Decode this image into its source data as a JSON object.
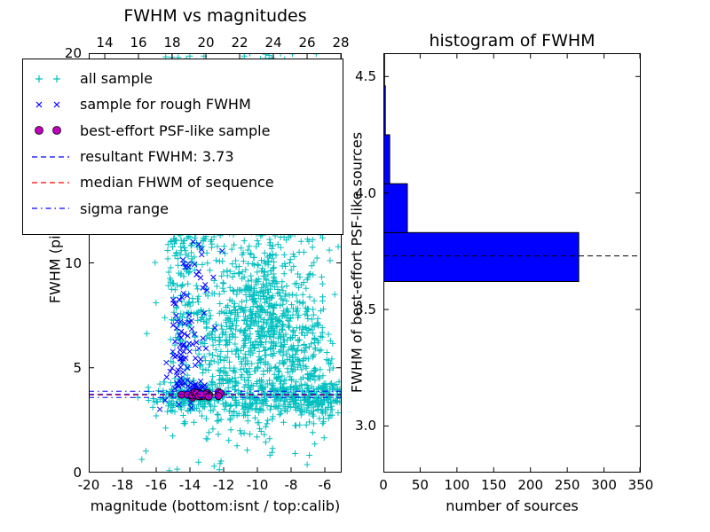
{
  "legend": {
    "entries": [
      {
        "label": "all sample",
        "type": "plus",
        "color": "#00bfbf"
      },
      {
        "label": "sample for rough FWHM",
        "type": "x",
        "color": "#0000ff"
      },
      {
        "label": "best-effort PSF-like sample",
        "type": "circle",
        "color": "#bf00bf",
        "edge": "#000000"
      },
      {
        "label": "resultant FWHM: 3.73",
        "type": "dashed",
        "color": "#0000ff"
      },
      {
        "label": "median FHWM of sequence",
        "type": "dashed",
        "color": "#ff0000"
      },
      {
        "label": "sigma range",
        "type": "dashdot",
        "color": "#0000ff"
      }
    ]
  },
  "chart_data": [
    {
      "type": "scatter",
      "title": "FWHM vs magnitudes",
      "xlabel": "magnitude (bottom:isnt / top:calib)",
      "ylabel": "FWHM (pix)",
      "xlim": [
        -20,
        -5
      ],
      "ylim": [
        0,
        20
      ],
      "x_ticks": [
        {
          "v": -20,
          "label": "-20"
        },
        {
          "v": -18,
          "label": "-18"
        },
        {
          "v": -16,
          "label": "-16"
        },
        {
          "v": -14,
          "label": "-14"
        },
        {
          "v": -12,
          "label": "-12"
        },
        {
          "v": -10,
          "label": "-10"
        },
        {
          "v": -8,
          "label": "-8"
        },
        {
          "v": -6,
          "label": "-6"
        }
      ],
      "y_ticks": [
        {
          "v": 0,
          "label": "0"
        },
        {
          "v": 5,
          "label": "5"
        },
        {
          "v": 10,
          "label": "10"
        },
        {
          "v": 15,
          "label": "15"
        },
        {
          "v": 20,
          "label": "20"
        }
      ],
      "top_axis": {
        "xlim": [
          13.05,
          28.05
        ],
        "ticks": [
          {
            "v": 14,
            "label": "14"
          },
          {
            "v": 16,
            "label": "16"
          },
          {
            "v": 18,
            "label": "18"
          },
          {
            "v": 20,
            "label": "20"
          },
          {
            "v": 22,
            "label": "22"
          },
          {
            "v": 24,
            "label": "24"
          },
          {
            "v": 26,
            "label": "26"
          },
          {
            "v": 28,
            "label": "28"
          }
        ]
      },
      "hlines": [
        {
          "name": "sigma range lower",
          "y": 3.58,
          "color": "#0000ff",
          "dash": "dashdot"
        },
        {
          "name": "sigma range upper",
          "y": 3.88,
          "color": "#0000ff",
          "dash": "dashdot"
        },
        {
          "name": "median FHWM of sequence",
          "y": 3.7,
          "color": "#ff0000",
          "dash": "dashed"
        },
        {
          "name": "resultant FWHM",
          "y": 3.73,
          "color": "#0000ff",
          "dash": "dashed"
        }
      ],
      "series": [
        {
          "id": "all-sample",
          "name": "all sample",
          "marker": "plus",
          "color": "#00bfbf",
          "clusters": [
            {
              "cx": -14.0,
              "cy": 3.55,
              "sx": 1.1,
              "sy": 0.35,
              "n": 200
            },
            {
              "cx": -9.0,
              "cy": 3.5,
              "sx": 2.0,
              "sy": 0.45,
              "n": 280
            },
            {
              "cx": -6.3,
              "cy": 3.7,
              "sx": 0.7,
              "sy": 0.6,
              "n": 70
            },
            {
              "cx": -5.6,
              "cy": 3.7,
              "sx": 0.5,
              "sy": 0.4,
              "n": 25
            },
            {
              "cx": -14.4,
              "cy": 13.0,
              "sx": 0.75,
              "sy": 5.0,
              "n": 420
            },
            {
              "cx": -9.5,
              "cy": 7.0,
              "sx": 1.5,
              "sy": 1.8,
              "n": 600
            },
            {
              "cx": -10.0,
              "cy": 12.0,
              "sx": 1.8,
              "sy": 3.0,
              "n": 300
            },
            {
              "cx": -9.0,
              "cy": 17.5,
              "sx": 1.6,
              "sy": 2.5,
              "n": 180
            },
            {
              "cx": -12.3,
              "cy": 6.0,
              "sx": 0.9,
              "sy": 1.5,
              "n": 120
            },
            {
              "cx": -7.2,
              "cy": 5.0,
              "sx": 0.9,
              "sy": 1.5,
              "n": 90
            },
            {
              "cx": -11.5,
              "cy": 1.8,
              "sx": 2.2,
              "sy": 1.0,
              "n": 50
            },
            {
              "cx": -6.5,
              "cy": 9.0,
              "sx": 0.8,
              "sy": 3.0,
              "n": 40
            }
          ]
        },
        {
          "id": "rough-fwhm-sample",
          "name": "sample for rough FWHM",
          "marker": "x",
          "color": "#0000ff",
          "clusters": [
            {
              "cx": -14.4,
              "cy": 5.0,
              "sx": 0.55,
              "sy": 0.9,
              "n": 55
            },
            {
              "cx": -14.2,
              "cy": 7.5,
              "sx": 0.6,
              "sy": 1.5,
              "n": 35
            },
            {
              "cx": -13.6,
              "cy": 10.0,
              "sx": 0.7,
              "sy": 1.3,
              "n": 15
            },
            {
              "cx": -13.9,
              "cy": 4.1,
              "sx": 0.5,
              "sy": 0.25,
              "n": 15
            }
          ]
        },
        {
          "id": "psf-like-sample",
          "name": "best-effort PSF-like sample",
          "marker": "circle",
          "color": "#bf00bf",
          "edge_color": "#000000",
          "clusters": [
            {
              "cx": -13.3,
              "cy": 3.71,
              "sx": 0.42,
              "sy": 0.055,
              "n": 42
            }
          ]
        }
      ]
    },
    {
      "type": "barh",
      "title": "histogram of FWHM",
      "xlabel": "number of sources",
      "ylabel": "FWHM of best-effort PSF-like sources",
      "xlim": [
        0,
        350
      ],
      "ylim": [
        2.8,
        4.6
      ],
      "x_ticks": [
        {
          "v": 0,
          "label": "0"
        },
        {
          "v": 50,
          "label": "50"
        },
        {
          "v": 100,
          "label": "100"
        },
        {
          "v": 150,
          "label": "150"
        },
        {
          "v": 200,
          "label": "200"
        },
        {
          "v": 250,
          "label": "250"
        },
        {
          "v": 300,
          "label": "300"
        },
        {
          "v": 350,
          "label": "350"
        }
      ],
      "y_ticks": [
        {
          "v": 3.0,
          "label": "3.0"
        },
        {
          "v": 3.5,
          "label": "3.5"
        },
        {
          "v": 4.0,
          "label": "4.0"
        },
        {
          "v": 4.5,
          "label": "4.5"
        }
      ],
      "bin_edges": [
        3.62,
        3.83,
        4.04,
        4.25,
        4.46,
        4.67
      ],
      "counts": [
        265,
        32,
        8,
        2,
        1
      ],
      "bar_color": "#0000ff",
      "bar_edge": "#000000",
      "hline": {
        "name": "resultant FWHM",
        "y": 3.73,
        "color": "#000000",
        "dash": "dashed"
      }
    }
  ]
}
